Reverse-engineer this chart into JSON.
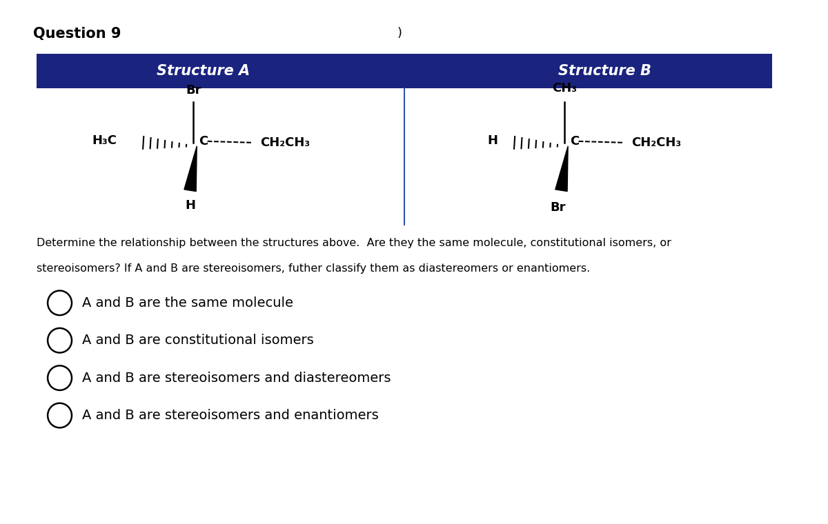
{
  "title": "Question 9",
  "title_paren": ")",
  "header_bg_color": "#1a237e",
  "header_text_color": "#ffffff",
  "header_a": "Structure A",
  "header_b": "Structure B",
  "question_text_line1": "Determine the relationship between the structures above.  Are they the same molecule, constitutional isomers, or",
  "question_text_line2": "stereoisomers? If A and B are stereoisomers, futher classify them as diastereomers or enantiomers.",
  "options": [
    "A and B are the same molecule",
    "A and B are constitutional isomers",
    "A and B are stereoisomers and diastereomers",
    "A and B are stereoisomers and enantiomers"
  ],
  "background_color": "#ffffff",
  "text_color": "#000000"
}
